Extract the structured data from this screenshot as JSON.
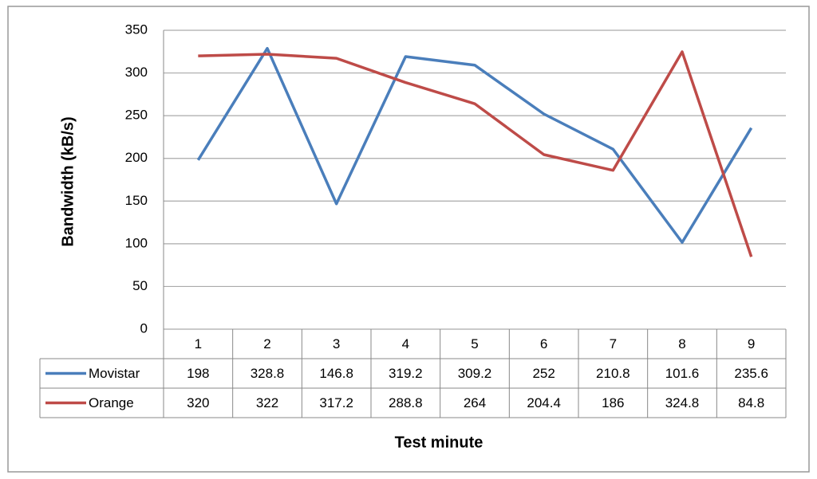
{
  "chart_data": {
    "type": "line",
    "y_label": "Bandwidth (kB/s)",
    "x_label": "Test minute",
    "categories": [
      "1",
      "2",
      "3",
      "4",
      "5",
      "6",
      "7",
      "8",
      "9"
    ],
    "series": [
      {
        "name": "Movistar",
        "color": "#4a7ebb",
        "values": [
          198,
          328.8,
          146.8,
          319.2,
          309.2,
          252,
          210.8,
          101.6,
          235.6
        ]
      },
      {
        "name": "Orange",
        "color": "#be4b48",
        "values": [
          320,
          322,
          317.2,
          288.8,
          264,
          204.4,
          186,
          324.8,
          84.8
        ]
      }
    ],
    "ylim": [
      0,
      350
    ],
    "yticks": [
      0,
      50,
      100,
      150,
      200,
      250,
      300,
      350
    ],
    "grid": true,
    "data_table": true
  }
}
